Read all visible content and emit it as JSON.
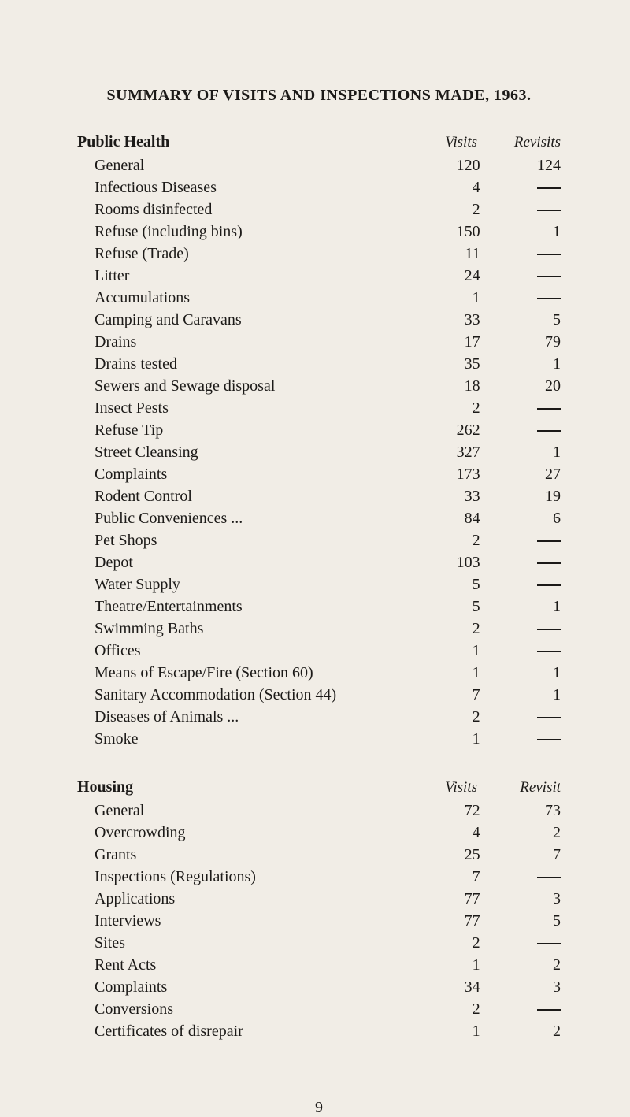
{
  "title": "SUMMARY OF VISITS AND INSPECTIONS MADE, 1963.",
  "page_number": "9",
  "colors": {
    "background": "#f1ede6",
    "text": "#1c1a18"
  },
  "typography": {
    "title_fontsize": 20,
    "body_fontsize": 20,
    "font_family": "Times New Roman"
  },
  "sections": {
    "public_health": {
      "heading": "Public Health",
      "col_visits": "Visits",
      "col_revisits": "Revisits",
      "rows": [
        {
          "label": "General",
          "visits": "120",
          "revisits": "124"
        },
        {
          "label": "Infectious Diseases",
          "visits": "4",
          "revisits": "—"
        },
        {
          "label": "Rooms disinfected",
          "visits": "2",
          "revisits": "—"
        },
        {
          "label": "Refuse (including bins)",
          "visits": "150",
          "revisits": "1"
        },
        {
          "label": "Refuse (Trade)",
          "visits": "11",
          "revisits": "—"
        },
        {
          "label": "Litter",
          "visits": "24",
          "revisits": "—"
        },
        {
          "label": "Accumulations",
          "visits": "1",
          "revisits": "—"
        },
        {
          "label": "Camping and Caravans",
          "visits": "33",
          "revisits": "5"
        },
        {
          "label": "Drains",
          "visits": "17",
          "revisits": "79"
        },
        {
          "label": "Drains tested",
          "visits": "35",
          "revisits": "1"
        },
        {
          "label": "Sewers and Sewage disposal",
          "visits": "18",
          "revisits": "20"
        },
        {
          "label": "Insect Pests",
          "visits": "2",
          "revisits": "—"
        },
        {
          "label": "Refuse Tip",
          "visits": "262",
          "revisits": "—"
        },
        {
          "label": "Street Cleansing",
          "visits": "327",
          "revisits": "1"
        },
        {
          "label": "Complaints",
          "visits": "173",
          "revisits": "27"
        },
        {
          "label": "Rodent Control",
          "visits": "33",
          "revisits": "19"
        },
        {
          "label": "Public Conveniences ...",
          "visits": "84",
          "revisits": "6"
        },
        {
          "label": "Pet Shops",
          "visits": "2",
          "revisits": "—"
        },
        {
          "label": "Depot",
          "visits": "103",
          "revisits": "—"
        },
        {
          "label": "Water Supply",
          "visits": "5",
          "revisits": "—"
        },
        {
          "label": "Theatre/Entertainments",
          "visits": "5",
          "revisits": "1"
        },
        {
          "label": "Swimming Baths",
          "visits": "2",
          "revisits": "—"
        },
        {
          "label": "Offices",
          "visits": "1",
          "revisits": "—"
        },
        {
          "label": "Means of Escape/Fire (Section 60)",
          "visits": "1",
          "revisits": "1"
        },
        {
          "label": "Sanitary Accommodation (Section 44)",
          "visits": "7",
          "revisits": "1"
        },
        {
          "label": "Diseases of Animals  ...",
          "visits": "2",
          "revisits": "—"
        },
        {
          "label": "Smoke",
          "visits": "1",
          "revisits": "—"
        }
      ]
    },
    "housing": {
      "heading": "Housing",
      "col_visits": "Visits",
      "col_revisits": "Revisit",
      "rows": [
        {
          "label": "General",
          "visits": "72",
          "revisits": "73"
        },
        {
          "label": "Overcrowding",
          "visits": "4",
          "revisits": "2"
        },
        {
          "label": "Grants",
          "visits": "25",
          "revisits": "7"
        },
        {
          "label": "Inspections (Regulations)",
          "visits": "7",
          "revisits": "—"
        },
        {
          "label": "Applications",
          "visits": "77",
          "revisits": "3"
        },
        {
          "label": "Interviews",
          "visits": "77",
          "revisits": "5"
        },
        {
          "label": "Sites",
          "visits": "2",
          "revisits": "—"
        },
        {
          "label": "Rent Acts",
          "visits": "1",
          "revisits": "2"
        },
        {
          "label": "Complaints",
          "visits": "34",
          "revisits": "3"
        },
        {
          "label": "Conversions",
          "visits": "2",
          "revisits": "—"
        },
        {
          "label": "Certificates of disrepair",
          "visits": "1",
          "revisits": "2"
        }
      ]
    }
  }
}
